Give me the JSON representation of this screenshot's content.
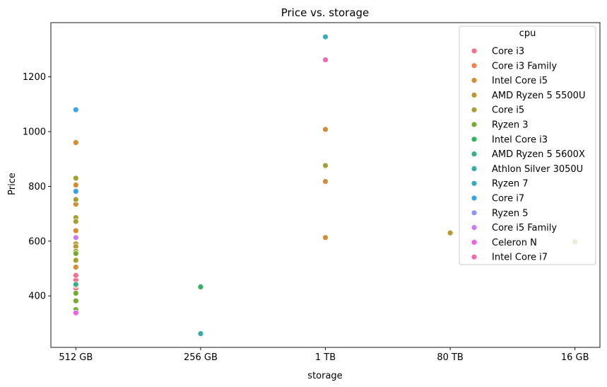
{
  "chart_data": {
    "type": "scatter",
    "title": "Price vs. storage",
    "xlabel": "storage",
    "ylabel": "Price",
    "categories": [
      "512 GB",
      "256 GB",
      "1 TB",
      "80 TB",
      "16 GB"
    ],
    "yticks": [
      400,
      600,
      800,
      1000,
      1200
    ],
    "ylim": [
      212,
      1398
    ],
    "grid": false,
    "legend": {
      "title": "cpu",
      "placement": "upper-right"
    },
    "series": [
      {
        "name": "Core i3",
        "color": "#f77189",
        "points": [
          [
            "512 GB",
            428
          ],
          [
            "512 GB",
            445
          ],
          [
            "512 GB",
            458
          ],
          [
            "512 GB",
            475
          ]
        ]
      },
      {
        "name": "Core i3 Family",
        "color": "#f3814c",
        "points": [
          [
            "512 GB",
            438
          ]
        ]
      },
      {
        "name": "Intel Core i5",
        "color": "#d58c32",
        "points": [
          [
            "512 GB",
            960
          ],
          [
            "512 GB",
            805
          ],
          [
            "512 GB",
            735
          ],
          [
            "512 GB",
            638
          ],
          [
            "512 GB",
            505
          ],
          [
            "1 TB",
            1008
          ],
          [
            "1 TB",
            818
          ],
          [
            "1 TB",
            613
          ]
        ]
      },
      {
        "name": "AMD Ryzen 5 5500U",
        "color": "#bb9832",
        "points": [
          [
            "512 GB",
            590
          ],
          [
            "512 GB",
            580
          ],
          [
            "80 TB",
            630
          ]
        ]
      },
      {
        "name": "Core i5",
        "color": "#a4a031",
        "points": [
          [
            "512 GB",
            830
          ],
          [
            "512 GB",
            752
          ],
          [
            "512 GB",
            686
          ],
          [
            "512 GB",
            672
          ],
          [
            "512 GB",
            563
          ],
          [
            "512 GB",
            530
          ],
          [
            "1 TB",
            876
          ],
          [
            "16 GB",
            598
          ]
        ]
      },
      {
        "name": "Ryzen 3",
        "color": "#73ac30",
        "points": [
          [
            "512 GB",
            555
          ],
          [
            "512 GB",
            410
          ],
          [
            "512 GB",
            382
          ],
          [
            "512 GB",
            350
          ]
        ]
      },
      {
        "name": "Intel Core i3",
        "color": "#31b360",
        "points": [
          [
            "256 GB",
            433
          ]
        ]
      },
      {
        "name": "AMD Ryzen 5 5600X",
        "color": "#34af8a",
        "points": [
          [
            "512 GB",
            442
          ]
        ]
      },
      {
        "name": "Athlon Silver 3050U",
        "color": "#36ada4",
        "points": [
          [
            "256 GB",
            262
          ]
        ]
      },
      {
        "name": "Ryzen 7",
        "color": "#38aabf",
        "points": [
          [
            "1 TB",
            1346
          ]
        ]
      },
      {
        "name": "Core i7",
        "color": "#3ba3ec",
        "points": [
          [
            "512 GB",
            1080
          ],
          [
            "512 GB",
            782
          ]
        ]
      },
      {
        "name": "Ryzen 5",
        "color": "#8e95f4",
        "points": []
      },
      {
        "name": "Core i5 Family",
        "color": "#cc79f4",
        "points": [
          [
            "512 GB",
            613
          ]
        ]
      },
      {
        "name": "Celeron N",
        "color": "#f45fe1",
        "points": [
          [
            "512 GB",
            338
          ]
        ]
      },
      {
        "name": "Intel Core i7",
        "color": "#f668b4",
        "points": [
          [
            "1 TB",
            1262
          ]
        ]
      }
    ]
  }
}
